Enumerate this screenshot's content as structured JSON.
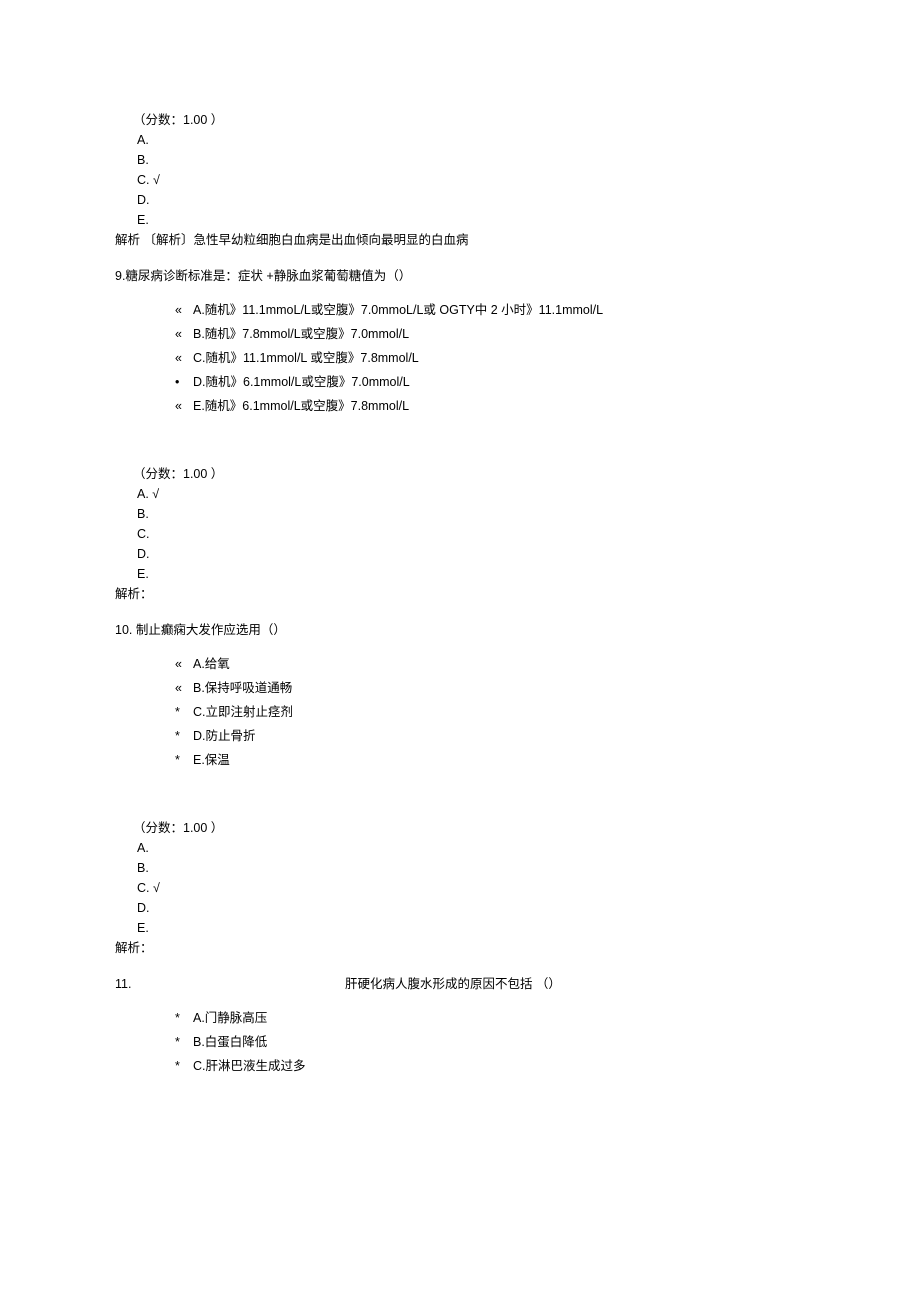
{
  "colors": {
    "text": "#000000",
    "background": "#ffffff"
  },
  "font": {
    "family": "SimSun / Microsoft YaHei",
    "size_pt": 9
  },
  "q8": {
    "score": "（分数：1.00 ）",
    "ansA": "A.",
    "ansB": "B.",
    "ansC": "C.   √",
    "ansD": "D.",
    "ansE": "E.",
    "explain": "解析   〔解析〕急性早幼粒细胞白血病是出血倾向最明显的白血病"
  },
  "q9": {
    "stem": "9.糖尿病诊断标准是：症状     +静脉血浆葡萄糖值为（）",
    "optA": "A.随机》11.1mmoL/L或空腹》7.0mmoL/L或  OGTY中  2 小时》11.1mmol/L",
    "optB": "B.随机》7.8mmol/L或空腹》7.0mmol/L",
    "optC": "C.随机》11.1mmol/L 或空腹》7.8mmol/L",
    "optD": "D.随机》6.1mmol/L或空腹》7.0mmol/L",
    "optE": "E.随机》6.1mmol/L或空腹》7.8mmol/L",
    "bulletA": "«",
    "bulletB": "«",
    "bulletC": "«",
    "bulletD": "•",
    "bulletE": "«",
    "score": "（分数：1.00 ）",
    "ansA": "A.    √",
    "ansB": "B.",
    "ansC": "C.",
    "ansD": "D.",
    "ansE": "E.",
    "explain": "解析："
  },
  "q10": {
    "stem": "10.     制止癫痫大发作应选用（）",
    "optA": "A.给氧",
    "optB": "B.保持呼吸道通畅",
    "optC": "C.立即注射止痉剂",
    "optD": "D.防止骨折",
    "optE": "E.保温",
    "bulletA": "«",
    "bulletB": "«",
    "bulletC": "*",
    "bulletD": "*",
    "bulletE": "*",
    "score": "（分数：1.00 ）",
    "ansA": "A.",
    "ansB": "B.",
    "ansC": "C.    √",
    "ansD": "D.",
    "ansE": "E.",
    "explain": "解析："
  },
  "q11": {
    "num": "11.",
    "stem": "肝硬化病人腹水形成的原因不包括 （）",
    "optA": "A.门静脉高压",
    "optB": "B.白蛋白降低",
    "optC": "C.肝淋巴液生成过多",
    "bulletA": "*",
    "bulletB": "*",
    "bulletC": "*"
  }
}
